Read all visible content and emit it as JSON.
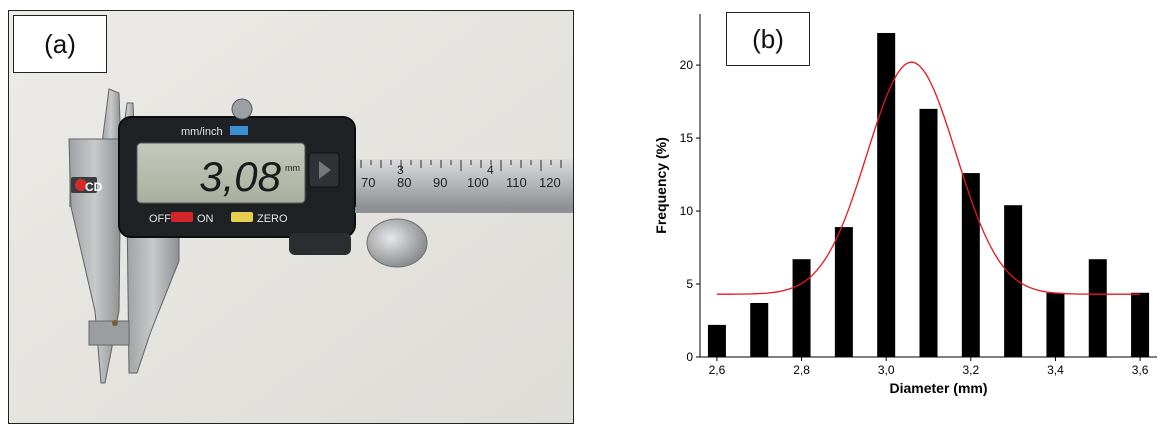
{
  "panel_a": {
    "label": "(a)",
    "caliper": {
      "brand_mark": "CD",
      "unit_switch_label": "mm/inch",
      "reading": "3,08",
      "reading_unit": "mm",
      "off_label": "OFF",
      "on_label": "ON",
      "zero_label": "ZERO",
      "scale_small_numbers": [
        "3",
        "4"
      ],
      "scale_numbers": [
        "70",
        "80",
        "90",
        "100",
        "110",
        "120"
      ]
    }
  },
  "panel_b": {
    "label": "(b)"
  },
  "chart_data": {
    "type": "bar",
    "title": "",
    "xlabel": "Diameter (mm)",
    "ylabel": "Frequency (%)",
    "x": [
      2.6,
      2.7,
      2.8,
      2.9,
      3.0,
      3.1,
      3.2,
      3.3,
      3.4,
      3.5,
      3.6
    ],
    "values": [
      2.2,
      3.7,
      6.7,
      8.9,
      22.2,
      17.0,
      12.6,
      10.4,
      4.4,
      6.7,
      4.4
    ],
    "xticks": [
      "2,6",
      "2,8",
      "3,0",
      "3,2",
      "3,4",
      "3,6"
    ],
    "xtick_values": [
      2.6,
      2.8,
      3.0,
      3.2,
      3.4,
      3.6
    ],
    "yticks": [
      "0",
      "5",
      "10",
      "15",
      "20"
    ],
    "ytick_values": [
      0,
      5,
      10,
      15,
      20
    ],
    "xlim": [
      2.56,
      3.64
    ],
    "ylim": [
      0,
      23.5
    ],
    "fit_curve": {
      "type": "gaussian",
      "color": "#e8161b",
      "baseline": 4.3,
      "peak": 20.2,
      "center": 3.06,
      "sigma": 0.105
    },
    "bar_color": "#000000",
    "grid": false
  }
}
